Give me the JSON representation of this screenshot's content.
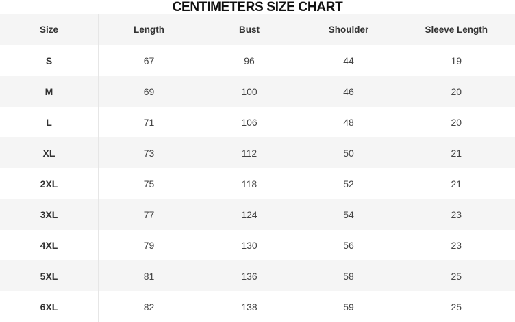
{
  "title": "CENTIMETERS SIZE CHART",
  "headers": [
    "Size",
    "Length",
    "Bust",
    "Shoulder",
    "Sleeve Length"
  ],
  "rows": [
    [
      "S",
      "67",
      "96",
      "44",
      "19"
    ],
    [
      "M",
      "69",
      "100",
      "46",
      "20"
    ],
    [
      "L",
      "71",
      "106",
      "48",
      "20"
    ],
    [
      "XL",
      "73",
      "112",
      "50",
      "21"
    ],
    [
      "2XL",
      "75",
      "118",
      "52",
      "21"
    ],
    [
      "3XL",
      "77",
      "124",
      "54",
      "23"
    ],
    [
      "4XL",
      "79",
      "130",
      "56",
      "23"
    ],
    [
      "5XL",
      "81",
      "136",
      "58",
      "25"
    ],
    [
      "6XL",
      "82",
      "138",
      "59",
      "25"
    ]
  ],
  "colors": {
    "stripe": "#f5f5f5",
    "background": "#ffffff",
    "text": "#333333"
  }
}
